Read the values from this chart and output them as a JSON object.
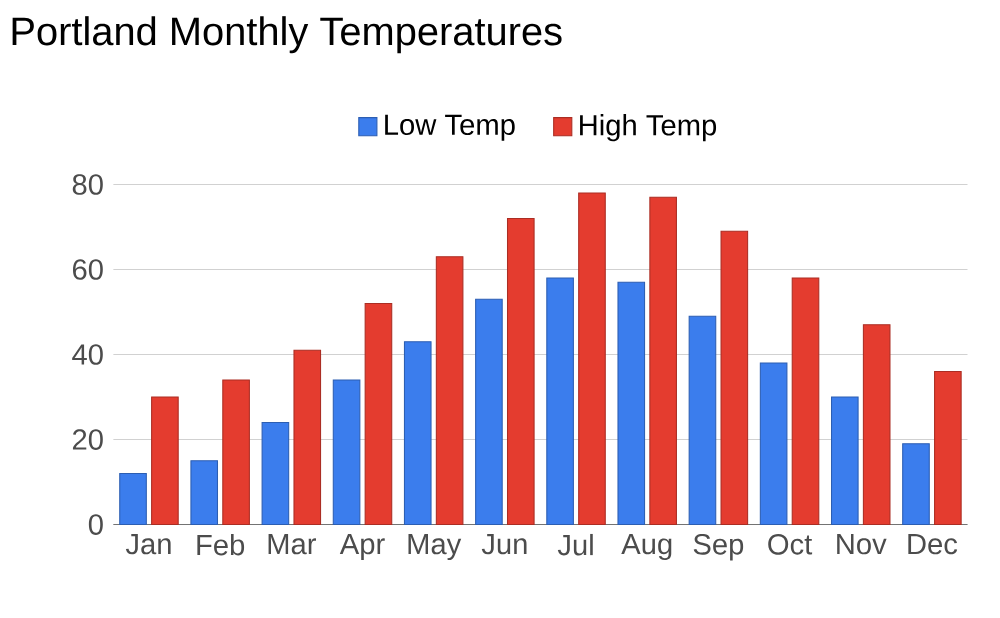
{
  "chart_data": {
    "type": "bar",
    "title": "Portland Monthly Temperatures",
    "categories": [
      "Jan",
      "Feb",
      "Mar",
      "Apr",
      "May",
      "Jun",
      "Jul",
      "Aug",
      "Sep",
      "Oct",
      "Nov",
      "Dec"
    ],
    "series": [
      {
        "name": "Low Temp",
        "color": "#3b7ded",
        "values": [
          12,
          15,
          24,
          34,
          43,
          53,
          58,
          57,
          49,
          38,
          30,
          19
        ]
      },
      {
        "name": "High Temp",
        "color": "#e43c2f",
        "values": [
          30,
          34,
          41,
          52,
          63,
          72,
          78,
          77,
          69,
          58,
          47,
          36
        ]
      }
    ],
    "ylim": [
      0,
      80
    ],
    "yticks": [
      0,
      20,
      40,
      60,
      80
    ],
    "grid": "y",
    "legend": "top"
  }
}
